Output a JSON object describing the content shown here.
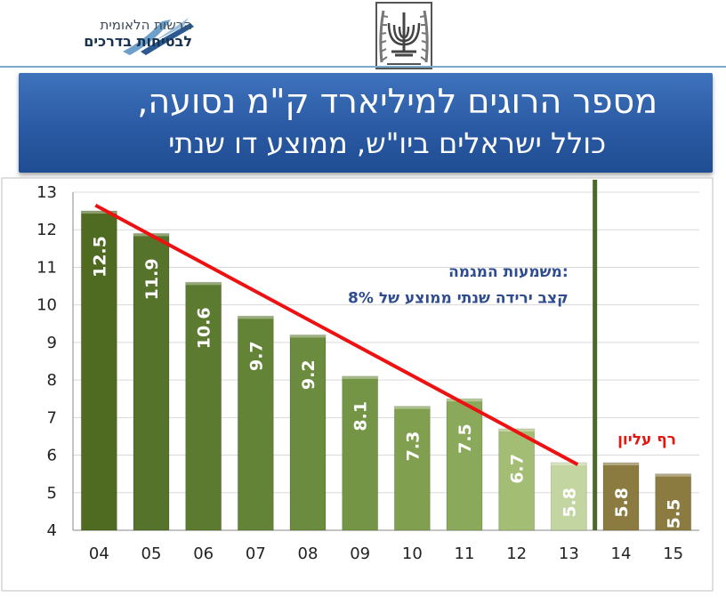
{
  "header": {
    "logo_line1": "הרשות הלאומית",
    "logo_line2": "לבטיחות בדרכים",
    "title": "מספר הרוגים למיליארד ק\"מ נסועה,",
    "subtitle": "כולל ישראלים ביו\"ש,  ממוצע דו שנתי"
  },
  "chart_data": {
    "type": "bar",
    "categories": [
      "04",
      "05",
      "06",
      "07",
      "08",
      "09",
      "10",
      "11",
      "12",
      "13",
      "14",
      "15"
    ],
    "values": [
      12.5,
      11.9,
      10.6,
      9.7,
      9.2,
      8.1,
      7.3,
      7.5,
      6.7,
      5.8,
      5.8,
      5.5
    ],
    "data_labels": [
      "12.5",
      "11.9",
      "10.6",
      "9.7",
      "9.2",
      "8.1",
      "7.3",
      "7.5",
      "6.7",
      "5.8",
      "5.8",
      "5.5"
    ],
    "ylim": [
      4,
      13
    ],
    "yticks": [
      "4",
      "5",
      "6",
      "7",
      "8",
      "9",
      "10",
      "11",
      "12",
      "13"
    ],
    "grid": true,
    "trend_line": {
      "from": [
        "04",
        12.65
      ],
      "to": [
        "13",
        5.75
      ],
      "color": "#ee1111"
    },
    "annotation_title": "משמעות המגמה:",
    "annotation_text": "קצב ירידה שנתי ממוצע של 8%",
    "ceiling_label": "רף עליון",
    "colors": {
      "bars_trend": [
        "#4f6b22",
        "#55732a",
        "#5c7b30",
        "#638337",
        "#6b8b3f",
        "#759546",
        "#809f4f",
        "#8ba95a",
        "#a3bd74",
        "#c3d5a0"
      ],
      "bars_after": [
        "#8c7b41",
        "#8c7b41"
      ],
      "divider": "#4b6a2a",
      "annotation": "#2f4d8e",
      "ceiling": "#e3170d"
    }
  }
}
